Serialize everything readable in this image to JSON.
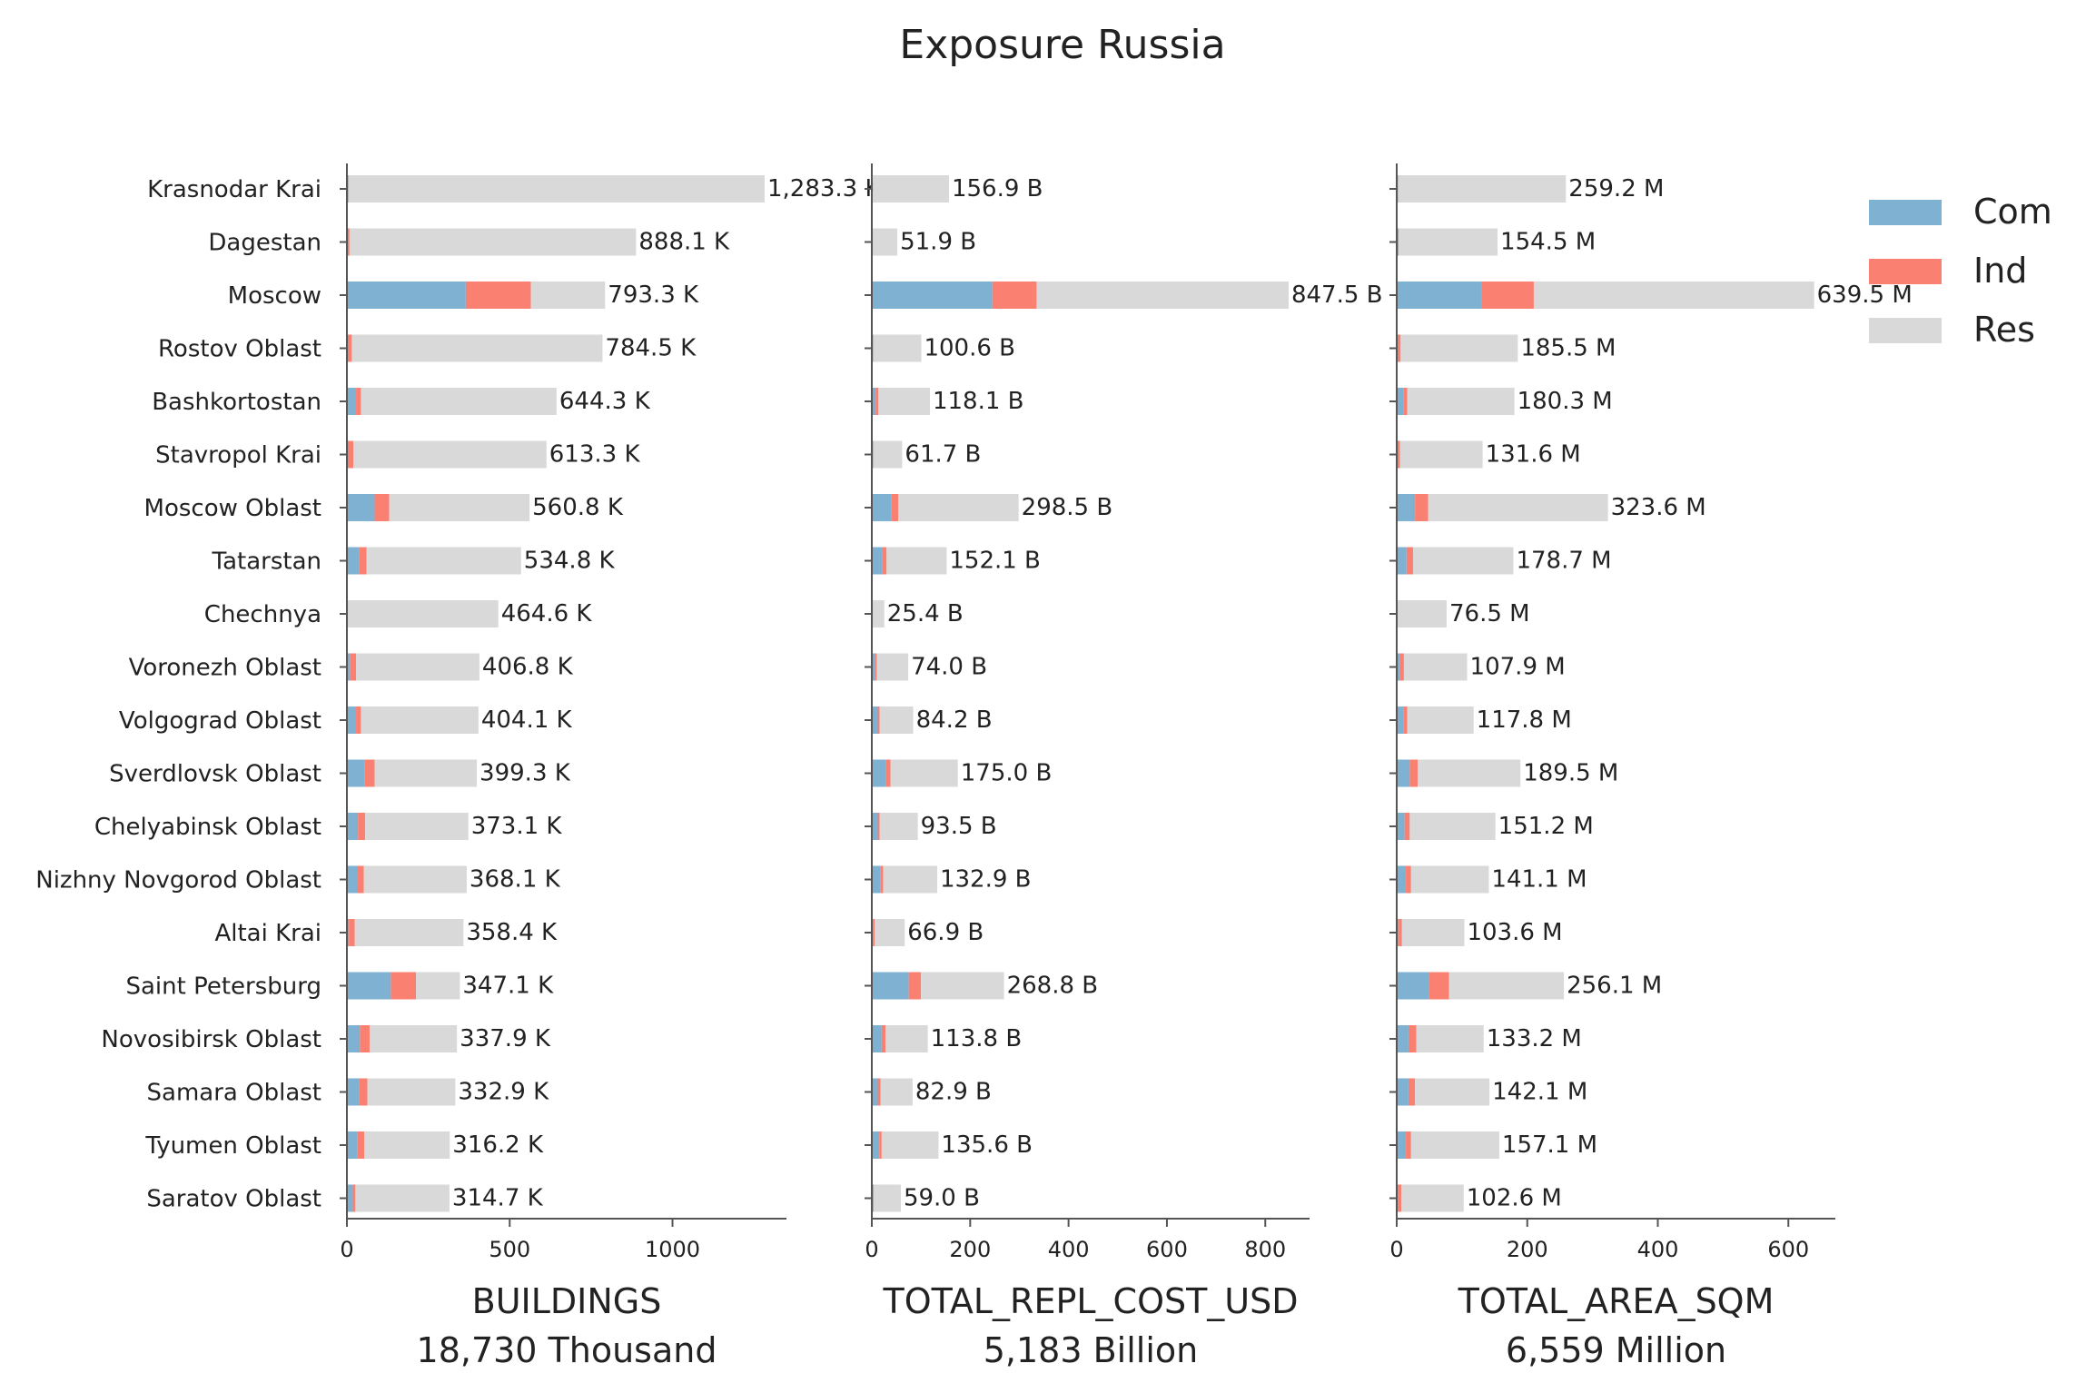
{
  "title": "Exposure Russia",
  "colors": {
    "Com": "#7fb1d3",
    "Ind": "#fa8072",
    "Res": "#d9d9d9",
    "axis": "#555555",
    "text": "#222222"
  },
  "legend": {
    "placement": "top-right",
    "entries": [
      "Com",
      "Ind",
      "Res"
    ]
  },
  "categories": [
    "Krasnodar Krai",
    "Dagestan",
    "Moscow",
    "Rostov Oblast",
    "Bashkortostan",
    "Stavropol Krai",
    "Moscow Oblast",
    "Tatarstan",
    "Chechnya",
    "Voronezh Oblast",
    "Volgograd Oblast",
    "Sverdlovsk Oblast",
    "Chelyabinsk Oblast",
    "Nizhny Novgorod Oblast",
    "Altai Krai",
    "Saint Petersburg",
    "Novosibirsk Oblast",
    "Samara Oblast",
    "Tyumen Oblast",
    "Saratov Oblast"
  ],
  "chart_data": [
    {
      "type": "bar",
      "orientation": "horizontal",
      "stacked": true,
      "xlabel": "BUILDINGS",
      "xlabel2": "18,730 Thousand",
      "xlim": [
        0,
        1350
      ],
      "xticks": [
        0,
        500,
        1000
      ],
      "series": [
        {
          "name": "Com",
          "values": [
            0,
            0,
            365,
            0,
            28,
            0,
            85,
            38,
            0,
            10,
            28,
            55,
            34,
            32,
            6,
            135,
            40,
            38,
            33,
            18
          ]
        },
        {
          "name": "Ind",
          "values": [
            5,
            8,
            200,
            15,
            15,
            20,
            45,
            22,
            0,
            18,
            15,
            30,
            22,
            20,
            18,
            77,
            30,
            25,
            20,
            8
          ]
        },
        {
          "name": "Res",
          "values": [
            1278,
            880,
            228,
            770,
            601,
            593,
            431,
            475,
            465,
            379,
            361,
            314,
            317,
            316,
            334,
            135,
            268,
            270,
            263,
            289
          ]
        }
      ],
      "labels": [
        "1,283.3 K",
        "888.1 K",
        "793.3 K",
        "784.5 K",
        "644.3 K",
        "613.3 K",
        "560.8 K",
        "534.8 K",
        "464.6 K",
        "406.8 K",
        "404.1 K",
        "399.3 K",
        "373.1 K",
        "368.1 K",
        "358.4 K",
        "347.1 K",
        "337.9 K",
        "332.9 K",
        "316.2 K",
        "314.7 K"
      ]
    },
    {
      "type": "bar",
      "orientation": "horizontal",
      "stacked": true,
      "xlabel": "TOTAL_REPL_COST_USD",
      "xlabel2": "5,183 Billion",
      "xlim": [
        0,
        890
      ],
      "xticks": [
        0,
        200,
        400,
        600,
        800
      ],
      "series": [
        {
          "name": "Com",
          "values": [
            0,
            0,
            245,
            0,
            8,
            0,
            40,
            22,
            0,
            6,
            12,
            28,
            12,
            18,
            3,
            75,
            20,
            12,
            15,
            2
          ]
        },
        {
          "name": "Ind",
          "values": [
            2,
            1,
            90,
            3,
            5,
            3,
            14,
            8,
            0,
            4,
            4,
            10,
            4,
            5,
            3,
            25,
            8,
            6,
            5,
            2
          ]
        },
        {
          "name": "Res",
          "values": [
            154.9,
            50.9,
            512.5,
            97.6,
            105.1,
            58.7,
            244.5,
            122.1,
            25.4,
            64.0,
            68.2,
            137.0,
            77.5,
            109.9,
            60.9,
            168.8,
            85.8,
            64.9,
            115.6,
            55.0
          ]
        }
      ],
      "labels": [
        "156.9 B",
        "51.9 B",
        "847.5 B",
        "100.6 B",
        "118.1 B",
        "61.7 B",
        "298.5 B",
        "152.1 B",
        "25.4 B",
        "74.0 B",
        "84.2 B",
        "175.0 B",
        "93.5 B",
        "132.9 B",
        "66.9 B",
        "268.8 B",
        "113.8 B",
        "82.9 B",
        "135.6 B",
        "59.0 B"
      ]
    },
    {
      "type": "bar",
      "orientation": "horizontal",
      "stacked": true,
      "xlabel": "TOTAL_AREA_SQM",
      "xlabel2": "6,559 Million",
      "xlim": [
        0,
        672
      ],
      "xticks": [
        0,
        200,
        400,
        600
      ],
      "series": [
        {
          "name": "Com",
          "values": [
            0,
            0,
            130,
            0,
            10,
            0,
            28,
            15,
            0,
            5,
            10,
            20,
            12,
            14,
            3,
            50,
            18,
            18,
            14,
            2
          ]
        },
        {
          "name": "Ind",
          "values": [
            2,
            3,
            80,
            6,
            6,
            5,
            20,
            10,
            0,
            6,
            6,
            12,
            8,
            8,
            5,
            30,
            12,
            10,
            8,
            5
          ]
        },
        {
          "name": "Res",
          "values": [
            257.2,
            151.5,
            429.5,
            179.5,
            164.3,
            126.6,
            275.6,
            153.7,
            76.5,
            96.9,
            101.8,
            157.5,
            131.2,
            119.1,
            95.6,
            176.1,
            103.2,
            114.1,
            135.1,
            95.6
          ]
        }
      ],
      "labels": [
        "259.2 M",
        "154.5 M",
        "639.5 M",
        "185.5 M",
        "180.3 M",
        "131.6 M",
        "323.6 M",
        "178.7 M",
        "76.5 M",
        "107.9 M",
        "117.8 M",
        "189.5 M",
        "151.2 M",
        "141.1 M",
        "103.6 M",
        "256.1 M",
        "133.2 M",
        "142.1 M",
        "157.1 M",
        "102.6 M"
      ]
    }
  ]
}
